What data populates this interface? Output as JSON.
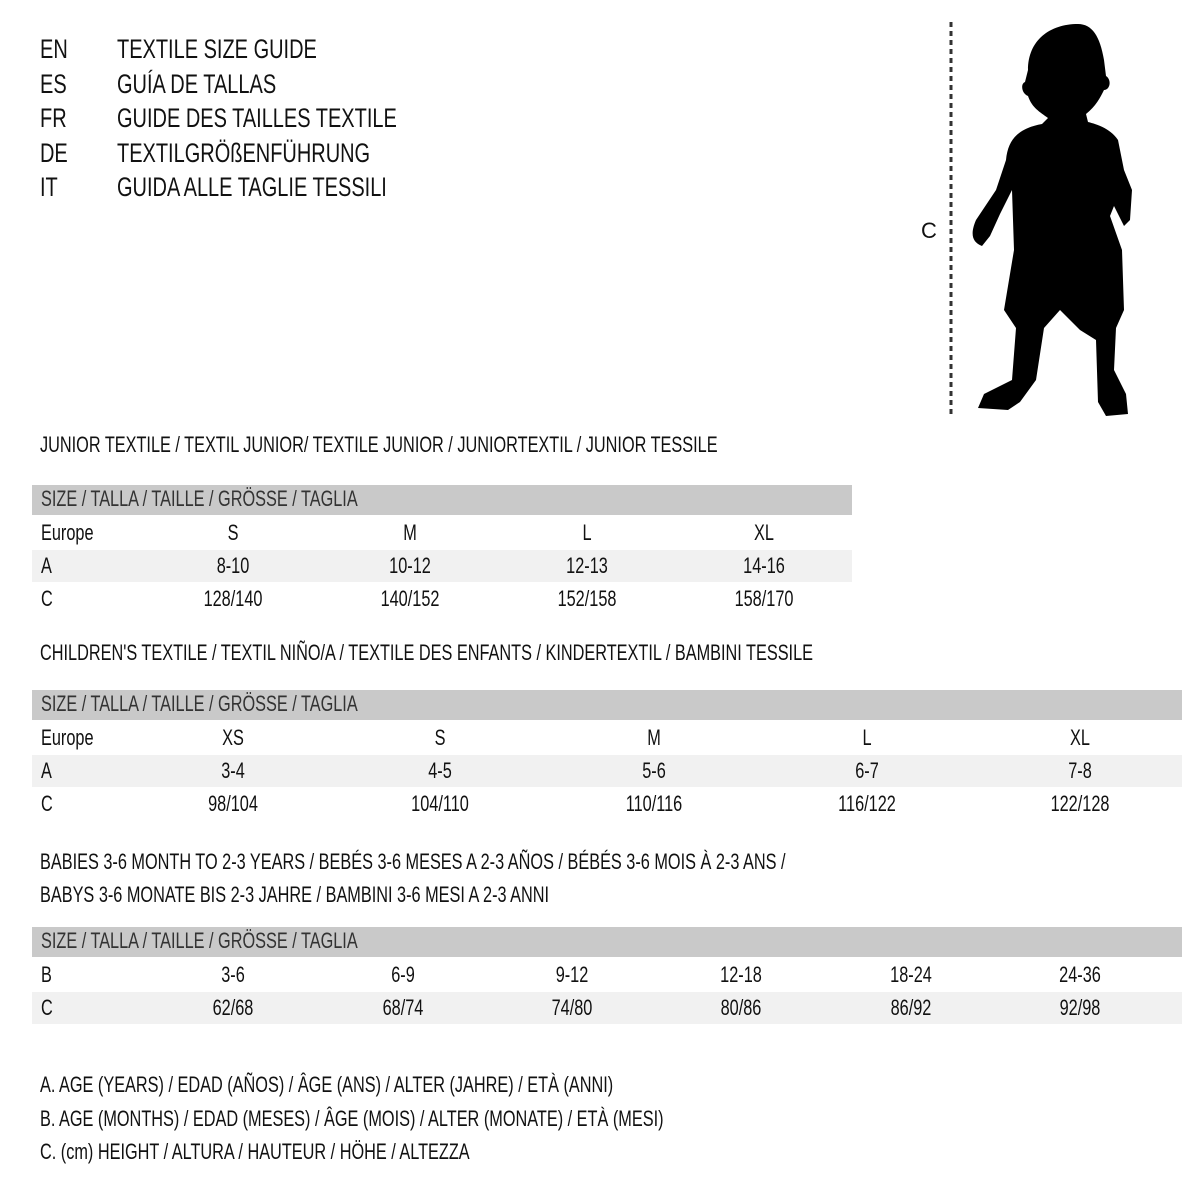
{
  "titles": [
    {
      "code": "EN",
      "text": "TEXTILE SIZE GUIDE"
    },
    {
      "code": "ES",
      "text": "GUÍA DE TALLAS"
    },
    {
      "code": "FR",
      "text": "GUIDE DES TAILLES TEXTILE"
    },
    {
      "code": "DE",
      "text": "TEXTILGRÖßENFÜHRUNG"
    },
    {
      "code": "IT",
      "text": "GUIDA ALLE TAGLIE TESSILI"
    }
  ],
  "figure": {
    "measure_label": "C",
    "icon": "child-silhouette-icon"
  },
  "colors": {
    "header_bg": "#c9c9c9",
    "shaded_row": "#f1f1f1"
  },
  "sections": [
    {
      "heading": [
        "JUNIOR TEXTILE / TEXTIL JUNIOR/ TEXTILE JUNIOR / JUNIORTEXTIL / JUNIOR TESSILE"
      ],
      "size_header": "SIZE / TALLA / TAILLE / GRÖSSE / TAGLIA",
      "rows": [
        {
          "label": "Europe",
          "values": [
            "S",
            "M",
            "L",
            "XL"
          ]
        },
        {
          "label": "A",
          "values": [
            "8-10",
            "10-12",
            "12-13",
            "14-16"
          ]
        },
        {
          "label": "C",
          "values": [
            "128/140",
            "140/152",
            "152/158",
            "158/170"
          ]
        }
      ]
    },
    {
      "heading": [
        "CHILDREN'S TEXTILE / TEXTIL NIÑO/A / TEXTILE DES ENFANTS / KINDERTEXTIL / BAMBINI TESSILE"
      ],
      "size_header": "SIZE / TALLA / TAILLE / GRÖSSE / TAGLIA",
      "rows": [
        {
          "label": "Europe",
          "values": [
            "XS",
            "S",
            "M",
            "L",
            "XL"
          ]
        },
        {
          "label": "A",
          "values": [
            "3-4",
            "4-5",
            "5-6",
            "6-7",
            "7-8"
          ]
        },
        {
          "label": "C",
          "values": [
            "98/104",
            "104/110",
            "110/116",
            "116/122",
            "122/128"
          ]
        }
      ]
    },
    {
      "heading": [
        "BABIES 3-6 MONTH TO 2-3 YEARS / BEBÉS 3-6 MESES A 2-3 AÑOS / BÉBÉS 3-6 MOIS À 2-3 ANS /",
        "BABYS 3-6 MONATE BIS 2-3 JAHRE / BAMBINI 3-6 MESI A 2-3 ANNI"
      ],
      "size_header": "SIZE / TALLA / TAILLE / GRÖSSE / TAGLIA",
      "rows": [
        {
          "label": "B",
          "values": [
            "3-6",
            "6-9",
            "9-12",
            "12-18",
            "18-24",
            "24-36"
          ]
        },
        {
          "label": "C",
          "values": [
            "62/68",
            "68/74",
            "74/80",
            "80/86",
            "86/92",
            "92/98"
          ]
        }
      ]
    }
  ],
  "legend": [
    "A. AGE (YEARS) / EDAD (AÑOS) / ÂGE (ANS) / ALTER (JAHRE) / ETÀ (ANNI)",
    "B. AGE (MONTHS) / EDAD (MESES) / ÂGE (MOIS) / ALTER (MONATE) / ETÀ (MESI)",
    "C. (cm) HEIGHT / ALTURA / HAUTEUR / HÖHE / ALTEZZA"
  ]
}
